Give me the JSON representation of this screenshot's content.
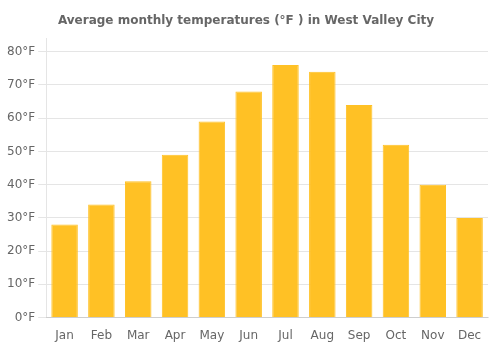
{
  "chart_data": {
    "type": "bar",
    "title": "Average monthly temperatures (°F ) in West Valley City",
    "categories": [
      "Jan",
      "Feb",
      "Mar",
      "Apr",
      "May",
      "Jun",
      "Jul",
      "Aug",
      "Sep",
      "Oct",
      "Nov",
      "Dec"
    ],
    "values": [
      28,
      34,
      41,
      49,
      59,
      68,
      76,
      74,
      64,
      52,
      40,
      30
    ],
    "color": "#FFC125",
    "ylim": [
      0,
      84
    ],
    "yticks": [
      {
        "value": 0,
        "label": "0°F"
      },
      {
        "value": 10,
        "label": "10°F"
      },
      {
        "value": 20,
        "label": "20°F"
      },
      {
        "value": 30,
        "label": "30°F"
      },
      {
        "value": 40,
        "label": "40°F"
      },
      {
        "value": 50,
        "label": "50°F"
      },
      {
        "value": 60,
        "label": "60°F"
      },
      {
        "value": 70,
        "label": "70°F"
      },
      {
        "value": 80,
        "label": "80°F"
      }
    ],
    "grid": true
  }
}
